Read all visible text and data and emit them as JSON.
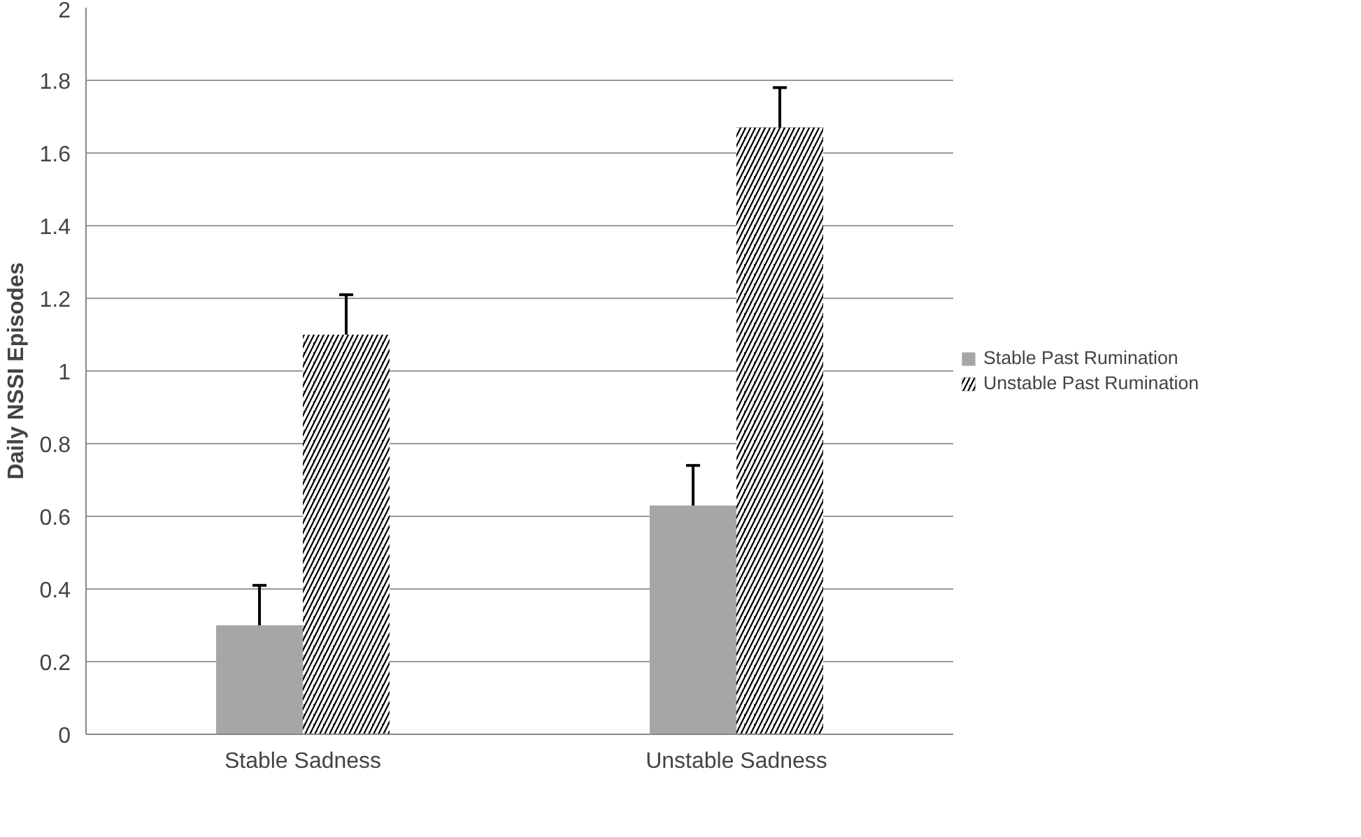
{
  "chart_data": {
    "type": "bar",
    "ylabel": "Daily NSSI Episodes",
    "categories": [
      "Stable Sadness",
      "Unstable Sadness"
    ],
    "series": [
      {
        "name": "Stable Past Rumination",
        "color": "#a6a6a6",
        "values": [
          0.3,
          0.63
        ],
        "errors": [
          0.11,
          0.11
        ]
      },
      {
        "name": "Unstable Past Rumination",
        "color": "#000000",
        "values": [
          1.1,
          1.67
        ],
        "errors": [
          0.11,
          0.11
        ]
      }
    ],
    "ylim": [
      0,
      2
    ],
    "yticks": [
      0,
      0.2,
      0.4,
      0.6,
      0.8,
      1,
      1.2,
      1.4,
      1.6,
      1.8,
      2
    ],
    "grid": "y",
    "legend": "right"
  }
}
